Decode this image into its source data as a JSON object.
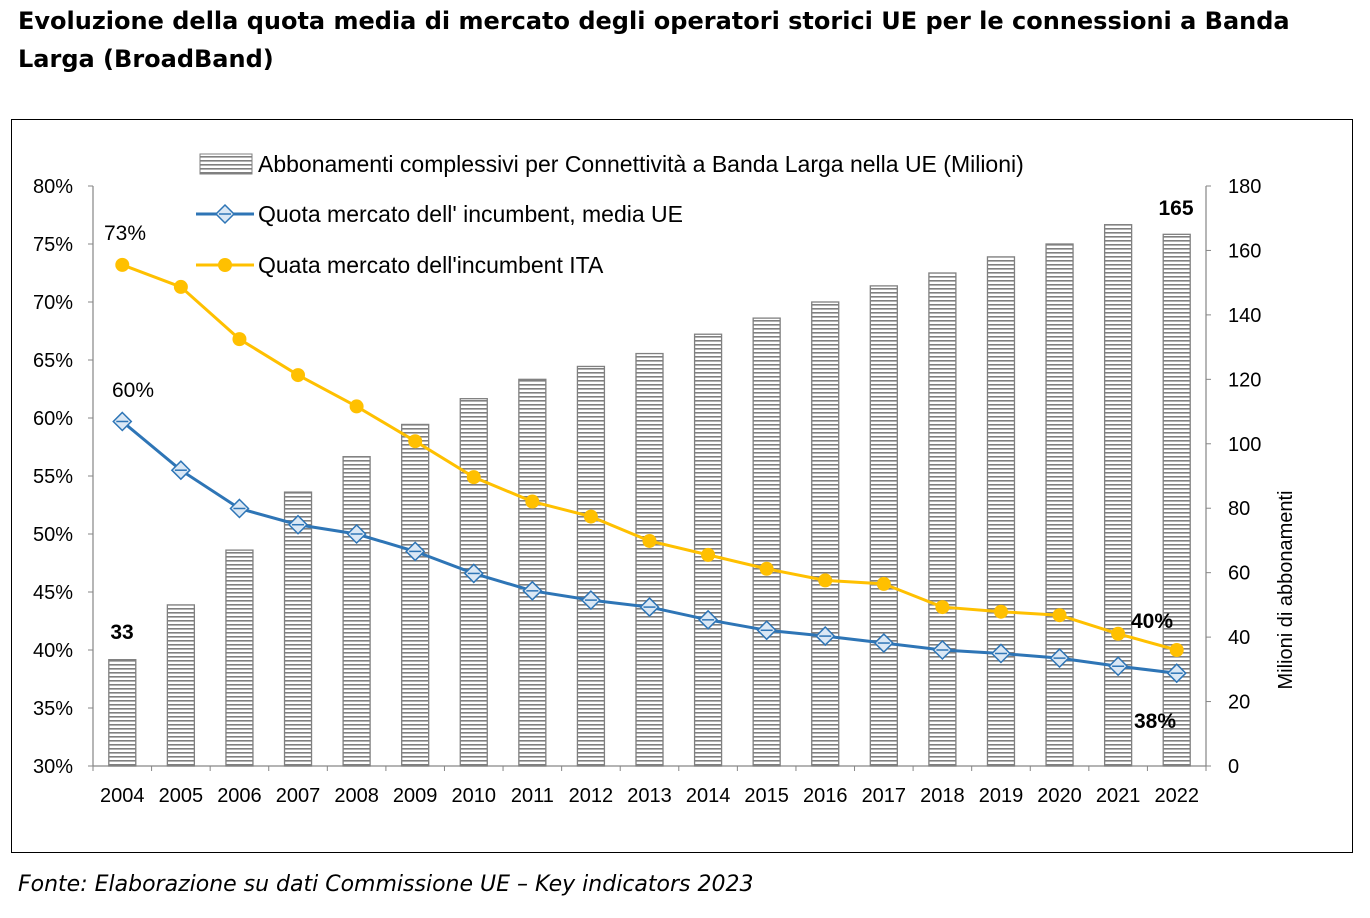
{
  "title": "Evoluzione della quota media di mercato degli operatori storici UE per le connessioni a Banda Larga (BroadBand)",
  "source": "Fonte: Elaborazione su dati Commissione UE – Key indicators 2023",
  "chart_data": {
    "type": "bar+line",
    "categories": [
      "2004",
      "2005",
      "2006",
      "2007",
      "2008",
      "2009",
      "2010",
      "2011",
      "2012",
      "2013",
      "2014",
      "2015",
      "2016",
      "2017",
      "2018",
      "2019",
      "2020",
      "2021",
      "2022"
    ],
    "series": [
      {
        "name": "Abbonamenti complessivi per Connettività a Banda Larga nella UE (Milioni)",
        "type": "bar",
        "axis": "right",
        "values": [
          33,
          50,
          67,
          85,
          96,
          106,
          114,
          120,
          124,
          128,
          134,
          139,
          144,
          149,
          153,
          158,
          162,
          168,
          165
        ]
      },
      {
        "name": "Quota mercato dell' incumbent, media UE",
        "type": "line",
        "axis": "left",
        "color": "#2e75b6",
        "values": [
          59.7,
          55.5,
          52.2,
          50.8,
          50.0,
          48.5,
          46.6,
          45.1,
          44.3,
          43.7,
          42.6,
          41.7,
          41.2,
          40.6,
          40.0,
          39.7,
          39.3,
          38.6,
          38.0
        ]
      },
      {
        "name": "Quata mercato dell'incumbent ITA",
        "type": "line",
        "axis": "left",
        "color": "#ffc000",
        "values": [
          73.2,
          71.3,
          66.8,
          63.7,
          61.0,
          58.0,
          54.9,
          52.8,
          51.5,
          49.4,
          48.2,
          47.0,
          46.0,
          45.7,
          43.7,
          43.3,
          43.0,
          41.4,
          40.0
        ]
      }
    ],
    "left_axis": {
      "ylim": [
        30,
        80
      ],
      "ticks": [
        "30%",
        "35%",
        "40%",
        "45%",
        "50%",
        "55%",
        "60%",
        "65%",
        "70%",
        "75%",
        "80%"
      ]
    },
    "right_axis": {
      "ylim": [
        0,
        180
      ],
      "label": "Milioni di abbonamenti",
      "ticks": [
        "0",
        "20",
        "40",
        "60",
        "80",
        "100",
        "120",
        "140",
        "160",
        "180"
      ]
    },
    "annotations": [
      {
        "text": "73%",
        "series": 2,
        "index": 0
      },
      {
        "text": "60%",
        "series": 1,
        "index": 0
      },
      {
        "text": "33",
        "series": 0,
        "index": 0
      },
      {
        "text": "165",
        "series": 0,
        "index": 18
      },
      {
        "text": "40%",
        "series": 2,
        "index": 18
      },
      {
        "text": "38%",
        "series": 1,
        "index": 18
      }
    ],
    "legend": "top"
  }
}
